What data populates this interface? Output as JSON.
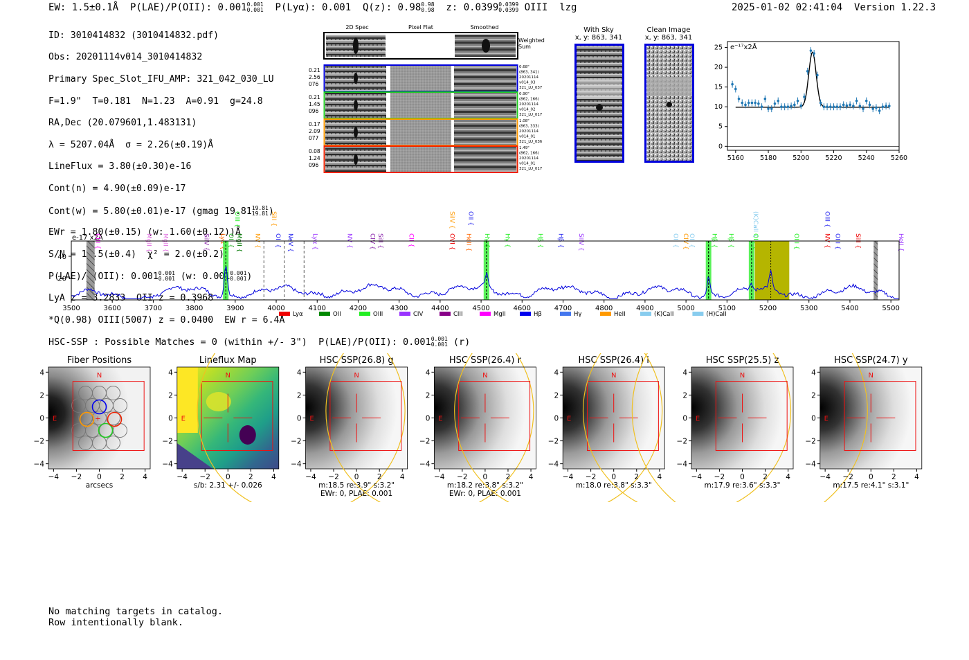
{
  "header": {
    "ew": "EW: 1.5±0.1Å",
    "plae_oii_label": "P(LAE)/P(OII): 0.001",
    "plae_oii_sup": "0.001",
    "plae_oii_sub": "0.001",
    "plya": "P(Lyα): 0.001",
    "qz_label": "Q(z): 0.98",
    "qz_sup": "0.98",
    "qz_sub": "0.98",
    "z_label": "z: 0.0399",
    "z_sup": "0.0399",
    "z_sub": "0.0399",
    "line": "OIII",
    "flags": "lzg",
    "timestamp": "2025-01-02 02:41:04",
    "version": "Version 1.22.3"
  },
  "info": {
    "l1": "ID: 3010414832 (3010414832.pdf)",
    "l2": "Obs: 20201114v014_3010414832",
    "l3": "Primary Spec_Slot_IFU_AMP: 321_042_030_LU",
    "l4": "F=1.9\"  T=0.181  N=1.23  A=0.91  g=24.8",
    "l5": "RA,Dec (20.079601,1.483131)",
    "l6": "λ = 5207.04Å  σ = 2.26(±0.19)Å",
    "l7": "LineFlux = 3.80(±0.30)e-16",
    "l8": "Cont(n) = 4.90(±0.09)e-17",
    "l9": "Cont(w) = 5.80(±0.01)e-17 (gmag 19.81",
    "l9_sup": "19.81",
    "l9_sub": "19.81",
    "l9_end": ")",
    "l10": "EWr = 1.80(±0.15) (w: 1.60(±0.12))Å",
    "l11": "S/N = 19.5(±0.4)  χ² = 2.0(±0.2)",
    "l12a": "P(LAE)/P(OII): 0.001",
    "l12a_sup": "0.001",
    "l12a_sub": "0.001",
    "l12b": " (w: 0.001",
    "l12b_sup": "0.001",
    "l12b_sub": "0.001",
    "l12b_end": ")",
    "l13": "LyA z = 3.2833  OII z = 0.3968",
    "l14": "*Q(0.98) OIII(5007) z = 0.0400  EW r = 6.4Å"
  },
  "cutouts": {
    "col_2d": "2D Spec",
    "col_flat": "Pixel Flat",
    "col_smooth": "Smoothed",
    "weighted": "Weighted",
    "sum": "Sum",
    "rows": [
      {
        "l1": "0.21",
        "l2": "2.56",
        "l3": "076",
        "r1": "0.68\"",
        "r2": "(863, 341)",
        "r3": "20201114",
        "r4": "v014_03",
        "r5": "321_LU_037",
        "color": "#0000dd"
      },
      {
        "l1": "0.21",
        "l2": "1.45",
        "l3": "096",
        "r1": "0.90\"",
        "r2": "(862, 166)",
        "r3": "20201114",
        "r4": "v014_02",
        "r5": "321_LU_017",
        "color": "#22cc22"
      },
      {
        "l1": "0.17",
        "l2": "2.09",
        "l3": "077",
        "r1": "1.08\"",
        "r2": "(863, 333)",
        "r3": "20201114",
        "r4": "v014_01",
        "r5": "321_LU_036",
        "color": "#ff9900"
      },
      {
        "l1": "0.08",
        "l2": "1.24",
        "l3": "096",
        "r1": "1.49\"",
        "r2": "(862, 166)",
        "r3": "20201114",
        "r4": "v014_01",
        "r5": "321_LU_017",
        "color": "#ee2200"
      }
    ],
    "withsky_t1": "With Sky",
    "withsky_t2": "x, y: 863, 341",
    "clean_t1": "Clean Image",
    "clean_t2": "x, y: 863, 341"
  },
  "zoom_chart": {
    "ylabel": "e⁻¹⁷x2Å",
    "xticks": [
      "5160",
      "5180",
      "5200",
      "5220",
      "5240",
      "5260"
    ],
    "yticks": [
      "0",
      "5",
      "10",
      "15",
      "20",
      "25"
    ]
  },
  "chart_data": [
    {
      "type": "scatter",
      "title": "",
      "xlabel": "",
      "ylabel": "e-17 x2A",
      "xlim": [
        5155,
        5260
      ],
      "ylim": [
        -1,
        26.5
      ],
      "x": [
        5158,
        5160,
        5162,
        5164,
        5166,
        5168,
        5170,
        5172,
        5174,
        5176,
        5178,
        5180,
        5182,
        5184,
        5186,
        5188,
        5190,
        5192,
        5194,
        5196,
        5198,
        5200,
        5202,
        5204,
        5206,
        5208,
        5210,
        5212,
        5214,
        5216,
        5218,
        5220,
        5222,
        5224,
        5226,
        5228,
        5230,
        5232,
        5234,
        5236,
        5238,
        5240,
        5242,
        5244,
        5246,
        5248,
        5250,
        5252,
        5254
      ],
      "values": [
        15.7,
        14.5,
        12,
        11,
        10.5,
        11,
        11,
        11,
        10.8,
        10,
        12,
        9.5,
        9.5,
        10.8,
        11.5,
        10,
        10,
        10,
        10.2,
        10.5,
        11.5,
        10.3,
        12.5,
        19,
        24.2,
        23.5,
        18,
        11,
        10,
        10,
        10,
        10,
        10,
        10,
        10.5,
        10.3,
        10.5,
        10.2,
        11.5,
        10.2,
        9.5,
        11.5,
        10.5,
        9.5,
        9.8,
        9,
        10,
        10.2,
        10.2
      ],
      "model": {
        "continuum": 9.9,
        "peak": 23.8,
        "center": 5207.0,
        "sigma": 2.26
      }
    },
    {
      "type": "line",
      "title": "",
      "ylabel": "e-17 x2A",
      "xlim": [
        3500,
        5520
      ],
      "ylim": [
        0,
        54
      ],
      "xticks": [
        "3500",
        "3600",
        "3700",
        "3800",
        "3900",
        "4000",
        "4100",
        "4200",
        "4300",
        "4400",
        "4500",
        "4600",
        "4700",
        "4800",
        "4900",
        "5000",
        "5100",
        "5200",
        "5300",
        "5400",
        "5500"
      ],
      "yticks": [
        "20",
        "40"
      ],
      "continuum": 10,
      "peaks": [
        {
          "x": 3877,
          "y": 38
        },
        {
          "x": 4513,
          "y": 22
        },
        {
          "x": 5055,
          "y": 26
        },
        {
          "x": 5160,
          "y": 15
        },
        {
          "x": 5207,
          "y": 25
        }
      ],
      "highlights": [
        {
          "x": 3877,
          "color": "#22ee22"
        },
        {
          "x": 4513,
          "color": "#22ee22"
        },
        {
          "x": 5055,
          "color": "#22ee22"
        },
        {
          "x": 5160,
          "color": "#22ee22"
        }
      ],
      "olive_band": [
        5168,
        5252
      ],
      "hatched": [
        3537,
        3557,
        5458,
        5468
      ],
      "dashed_gray": [
        3970,
        4020,
        4068
      ],
      "line_labels": [
        {
          "t": "CIII",
          "x": 3555,
          "c": "#ff00ff",
          "r": 1
        },
        {
          "t": "MgII",
          "x": 3680,
          "c": "#e070e0",
          "r": 1
        },
        {
          "t": "MgII",
          "x": 3720,
          "c": "#e070e0",
          "r": 1
        },
        {
          "t": "SiIV",
          "x": 3820,
          "c": "#8822aa",
          "r": 1
        },
        {
          "t": "Lyα",
          "x": 3860,
          "c": "#ff6600",
          "r": 1
        },
        {
          "t": "OII",
          "x": 3880,
          "c": "#22aa22",
          "r": 1
        },
        {
          "t": "OIII",
          "x": 3895,
          "c": "#22ee22",
          "r": 0
        },
        {
          "t": "MgII",
          "x": 3900,
          "c": "#007700",
          "r": 1
        },
        {
          "t": "NV",
          "x": 3945,
          "c": "#ff9900",
          "r": 1
        },
        {
          "t": "SiII",
          "x": 3985,
          "c": "#ff9900",
          "r": 0
        },
        {
          "t": "OII",
          "x": 3995,
          "c": "#2222ee",
          "r": 1
        },
        {
          "t": "NeV",
          "x": 4025,
          "c": "#2222ee",
          "r": 1
        },
        {
          "t": "Lyα",
          "x": 4085,
          "c": "#9933ff",
          "r": 1
        },
        {
          "t": "NV",
          "x": 4170,
          "c": "#9933ff",
          "r": 1
        },
        {
          "t": "CIV",
          "x": 4225,
          "c": "#8822aa",
          "r": 1
        },
        {
          "t": "SiII",
          "x": 4245,
          "c": "#8822aa",
          "r": 1
        },
        {
          "t": "CII",
          "x": 4320,
          "c": "#ff00ff",
          "r": 1
        },
        {
          "t": "SiIV",
          "x": 4420,
          "c": "#ff9900",
          "r": 0
        },
        {
          "t": "OVI",
          "x": 4420,
          "c": "#ee0000",
          "r": 1
        },
        {
          "t": "OII",
          "x": 4465,
          "c": "#2222ee",
          "r": 0
        },
        {
          "t": "HeII",
          "x": 4460,
          "c": "#ff6600",
          "r": 1
        },
        {
          "t": "Hγ",
          "x": 4505,
          "c": "#22ee22",
          "r": 1
        },
        {
          "t": "Hγ",
          "x": 4555,
          "c": "#22ee22",
          "r": 1
        },
        {
          "t": "Hβ",
          "x": 4635,
          "c": "#22ee22",
          "r": 1
        },
        {
          "t": "Hβ",
          "x": 4685,
          "c": "#2222ee",
          "r": 1
        },
        {
          "t": "SiIV",
          "x": 4735,
          "c": "#9933ff",
          "r": 1
        },
        {
          "t": "OII",
          "x": 4965,
          "c": "#88ccee",
          "r": 1
        },
        {
          "t": "CIV",
          "x": 4990,
          "c": "#ff9900",
          "r": 1
        },
        {
          "t": "OII",
          "x": 5005,
          "c": "#88ccee",
          "r": 1
        },
        {
          "t": "Hβ",
          "x": 5060,
          "c": "#22ee22",
          "r": 1
        },
        {
          "t": "Hβ",
          "x": 5100,
          "c": "#22ee22",
          "r": 1
        },
        {
          "t": "(K)CaII",
          "x": 5160,
          "c": "#88ccee",
          "r": 0
        },
        {
          "t": "OIII",
          "x": 5160,
          "c": "#22ee22",
          "r": 1
        },
        {
          "t": "OIII",
          "x": 5260,
          "c": "#22ee22",
          "r": 1
        },
        {
          "t": "OIII",
          "x": 5335,
          "c": "#2222ee",
          "r": 0
        },
        {
          "t": "NV",
          "x": 5335,
          "c": "#ee0000",
          "r": 1
        },
        {
          "t": "OIII",
          "x": 5360,
          "c": "#2222ee",
          "r": 1
        },
        {
          "t": "SiII",
          "x": 5410,
          "c": "#ee0000",
          "r": 1
        },
        {
          "t": "HeII",
          "x": 5520,
          "c": "#9933ff",
          "r": 1
        }
      ],
      "legend": [
        {
          "t": "Lyα",
          "c": "#ee0000"
        },
        {
          "t": "OII",
          "c": "#008800"
        },
        {
          "t": "OIII",
          "c": "#22ee22"
        },
        {
          "t": "CIV",
          "c": "#9933ff"
        },
        {
          "t": "CIII",
          "c": "#880088"
        },
        {
          "t": "MgII",
          "c": "#ff00ff"
        },
        {
          "t": "Hβ",
          "c": "#0000ee"
        },
        {
          "t": "Hγ",
          "c": "#4477ee"
        },
        {
          "t": "HeII",
          "c": "#ff9900"
        },
        {
          "t": "(K)CaII",
          "c": "#88ccee"
        },
        {
          "t": "(H)CaII",
          "c": "#88ccee"
        }
      ]
    }
  ],
  "hsc": {
    "summary_pre": "HSC-SSP : Possible Matches = 0 (within +/- 3\")  P(LAE)/P(OII): 0.001",
    "summary_sup": "0.001",
    "summary_sub": "0.001",
    "summary_end": "(r)",
    "panels": [
      {
        "title": "Fiber Positions",
        "cap1": "arcsecs",
        "cap2": ""
      },
      {
        "title": "Lineflux Map",
        "cap1": "s/b: 2.31 +/- 0.026",
        "cap2": ""
      },
      {
        "title": "HSC SSP(26.8) g",
        "cap1": "m:18.5  re:3.9\"  s:3.2\"",
        "cap2": "EWr: 0, PLAE: 0.001"
      },
      {
        "title": "HSC SSP(26.4) r",
        "cap1": "m:18.2  re:3.8\"  s:3.2\"",
        "cap2": "EWr: 0, PLAE: 0.001"
      },
      {
        "title": "HSC SSP(26.4) i",
        "cap1": "m:18.0  re:3.8\"  s:3.3\"",
        "cap2": ""
      },
      {
        "title": "HSC SSP(25.5) z",
        "cap1": "m:17.9  re:3.6\"  s:3.3\"",
        "cap2": ""
      },
      {
        "title": "HSC SSP(24.7) y",
        "cap1": "m:17.5  re:4.1\"  s:3.1\"",
        "cap2": ""
      }
    ],
    "compass_n": "N",
    "compass_e": "E",
    "ticks": [
      "−4",
      "−2",
      "0",
      "2",
      "4"
    ]
  },
  "footer": {
    "l1": "No matching targets in catalog.",
    "l2": "Row intentionally blank."
  }
}
